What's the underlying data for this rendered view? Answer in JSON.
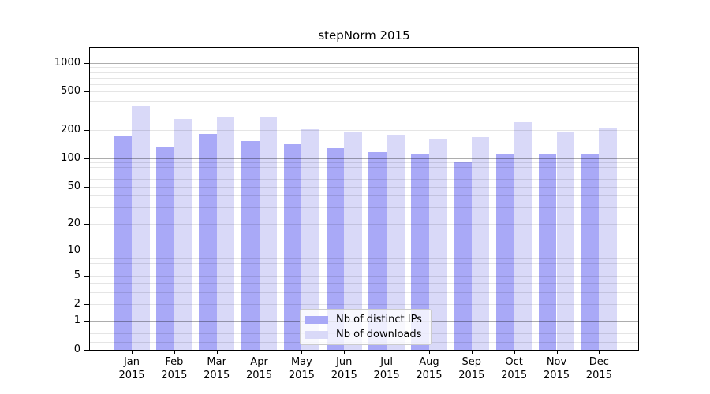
{
  "title": "stepNorm 2015",
  "chart_data": {
    "type": "bar",
    "title": "stepNorm 2015",
    "categories": [
      "Jan",
      "Feb",
      "Mar",
      "Apr",
      "May",
      "Jun",
      "Jul",
      "Aug",
      "Sep",
      "Oct",
      "Nov",
      "Dec"
    ],
    "xtick_second_line": "2015",
    "series": [
      {
        "name": "Nb of distinct IPs",
        "color": "#a9a9f7",
        "values": [
          175,
          129,
          179,
          152,
          140,
          128,
          116,
          112,
          90,
          109,
          110,
          111
        ]
      },
      {
        "name": "Nb of downloads",
        "color": "#d9d9f8",
        "values": [
          350,
          261,
          271,
          269,
          203,
          190,
          176,
          159,
          166,
          240,
          186,
          209
        ]
      }
    ],
    "xlabel": "",
    "ylabel": "",
    "yscale": "log1p",
    "ylim": [
      0,
      1434
    ],
    "ytick_labels": [
      0,
      1,
      2,
      5,
      10,
      20,
      50,
      100,
      200,
      500,
      1000
    ],
    "grid_major": [
      1,
      10,
      100,
      1000
    ],
    "grid_minor": [
      0.2,
      0.5,
      2,
      3,
      4,
      5,
      6,
      7,
      8,
      9,
      20,
      30,
      40,
      50,
      60,
      70,
      80,
      90,
      200,
      300,
      400,
      500,
      600,
      700,
      800,
      900
    ],
    "grid": true,
    "legend_position": "lower center"
  },
  "legend": {
    "items": [
      {
        "label": "Nb of distinct IPs"
      },
      {
        "label": "Nb of downloads"
      }
    ]
  }
}
